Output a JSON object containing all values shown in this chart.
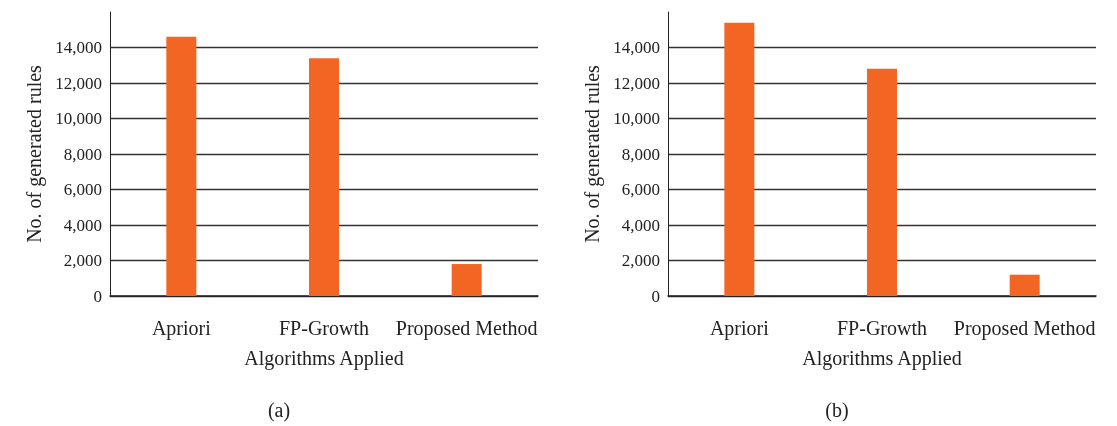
{
  "chart_data": [
    {
      "type": "bar",
      "categories": [
        "Apriori",
        "FP-Growth",
        "Proposed Method"
      ],
      "values": [
        14600,
        13400,
        1800
      ],
      "color": "#f26522",
      "xlabel": "Algorithms Applied",
      "ylabel": "No. of generated rules",
      "ylim": [
        0,
        16000
      ],
      "yticks": [
        0,
        {
          "value": 2000,
          "label": "2,000"
        },
        {
          "value": 4000,
          "label": "4,000"
        },
        {
          "value": 6000,
          "label": "6,000"
        },
        {
          "value": 8000,
          "label": "8,000"
        },
        {
          "value": 10000,
          "label": "10,000"
        },
        {
          "value": 12000,
          "label": "12,000"
        },
        {
          "value": 14000,
          "label": "14,000"
        }
      ],
      "grid": "y",
      "annotations": [
        "(a)"
      ]
    },
    {
      "type": "bar",
      "categories": [
        "Apriori",
        "FP-Growth",
        "Proposed Method"
      ],
      "values": [
        15400,
        12800,
        1200
      ],
      "color": "#f26522",
      "xlabel": "Algorithms Applied",
      "ylabel": "No. of generated rules",
      "ylim": [
        0,
        16000
      ],
      "yticks": [
        0,
        {
          "value": 2000,
          "label": "2,000"
        },
        {
          "value": 4000,
          "label": "4,000"
        },
        {
          "value": 6000,
          "label": "6,000"
        },
        {
          "value": 8000,
          "label": "8,000"
        },
        {
          "value": 10000,
          "label": "10,000"
        },
        {
          "value": 12000,
          "label": "12,000"
        },
        {
          "value": 14000,
          "label": "14,000"
        }
      ],
      "grid": "y",
      "annotations": [
        "(b)"
      ]
    }
  ]
}
